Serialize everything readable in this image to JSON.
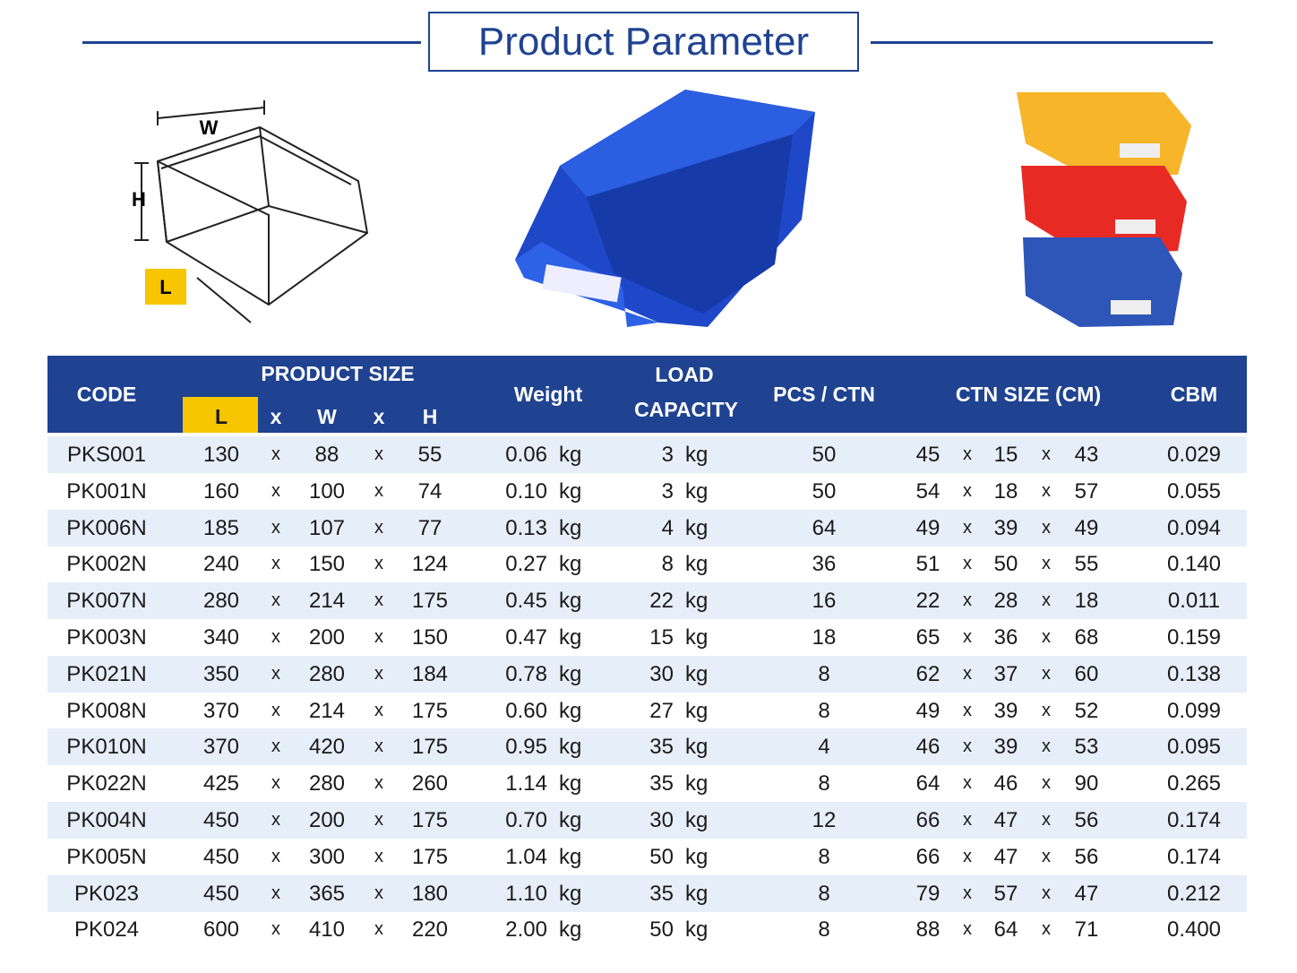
{
  "header": {
    "title": "Product Parameter"
  },
  "diagram": {
    "w": "W",
    "h": "H",
    "l": "L"
  },
  "table": {
    "columns": {
      "code": "CODE",
      "product_size": "PRODUCT SIZE",
      "l": "L",
      "w": "W",
      "h": "H",
      "weight": "Weight",
      "load_1": "LOAD",
      "load_2": "CAPACITY",
      "pcs_ctn": "PCS / CTN",
      "ctn_size": "CTN SIZE (CM)",
      "cbm": "CBM"
    },
    "separator": "x",
    "unit": "kg",
    "rows": [
      [
        "PKS001",
        "130",
        "88",
        "55",
        "0.06",
        "3",
        "50",
        "45",
        "15",
        "43",
        "0.029"
      ],
      [
        "PK001N",
        "160",
        "100",
        "74",
        "0.10",
        "3",
        "50",
        "54",
        "18",
        "57",
        "0.055"
      ],
      [
        "PK006N",
        "185",
        "107",
        "77",
        "0.13",
        "4",
        "64",
        "49",
        "39",
        "49",
        "0.094"
      ],
      [
        "PK002N",
        "240",
        "150",
        "124",
        "0.27",
        "8",
        "36",
        "51",
        "50",
        "55",
        "0.140"
      ],
      [
        "PK007N",
        "280",
        "214",
        "175",
        "0.45",
        "22",
        "16",
        "22",
        "28",
        "18",
        "0.011"
      ],
      [
        "PK003N",
        "340",
        "200",
        "150",
        "0.47",
        "15",
        "18",
        "65",
        "36",
        "68",
        "0.159"
      ],
      [
        "PK021N",
        "350",
        "280",
        "184",
        "0.78",
        "30",
        "8",
        "62",
        "37",
        "60",
        "0.138"
      ],
      [
        "PK008N",
        "370",
        "214",
        "175",
        "0.60",
        "27",
        "8",
        "49",
        "39",
        "52",
        "0.099"
      ],
      [
        "PK010N",
        "370",
        "420",
        "175",
        "0.95",
        "35",
        "4",
        "46",
        "39",
        "53",
        "0.095"
      ],
      [
        "PK022N",
        "425",
        "280",
        "260",
        "1.14",
        "35",
        "8",
        "64",
        "46",
        "90",
        "0.265"
      ],
      [
        "PK004N",
        "450",
        "200",
        "175",
        "0.70",
        "30",
        "12",
        "66",
        "47",
        "56",
        "0.174"
      ],
      [
        "PK005N",
        "450",
        "300",
        "175",
        "1.04",
        "50",
        "8",
        "66",
        "47",
        "56",
        "0.174"
      ],
      [
        "PK023",
        "450",
        "365",
        "180",
        "1.10",
        "35",
        "8",
        "79",
        "57",
        "47",
        "0.212"
      ],
      [
        "PK024",
        "600",
        "410",
        "220",
        "2.00",
        "50",
        "8",
        "88",
        "64",
        "71",
        "0.400"
      ]
    ]
  }
}
